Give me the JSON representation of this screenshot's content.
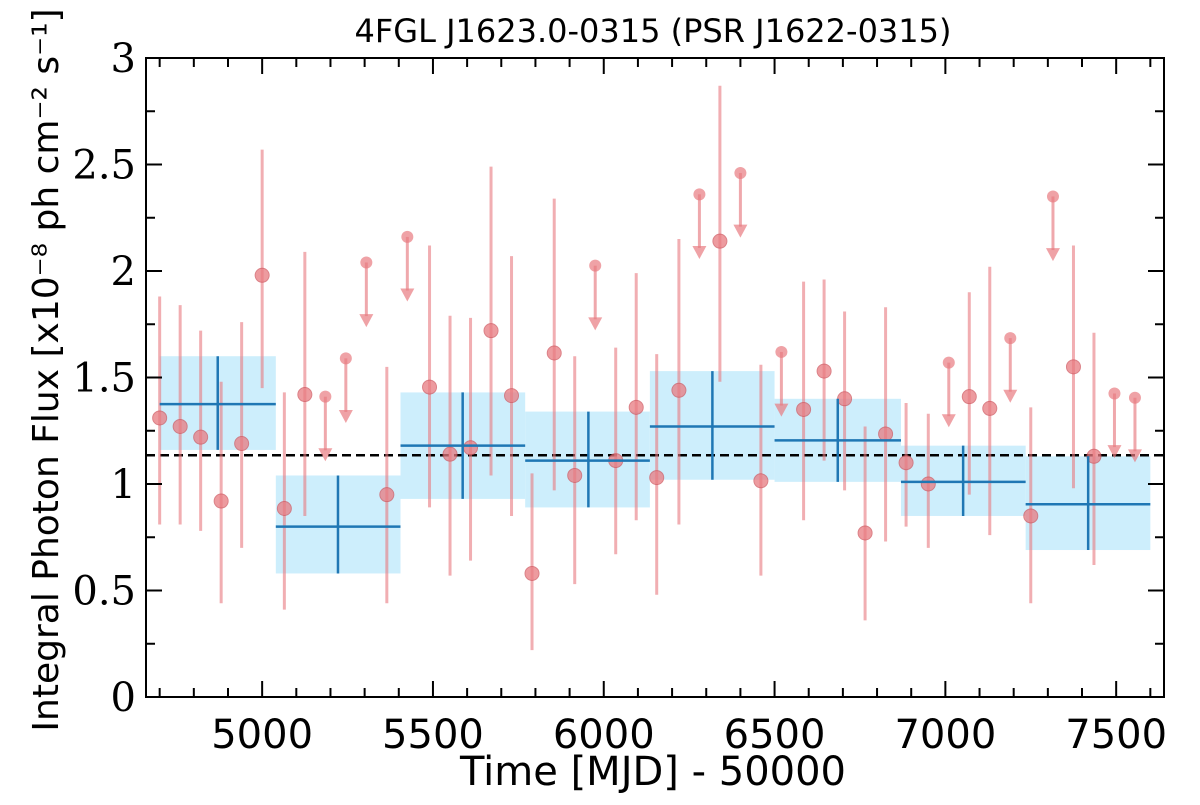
{
  "chart_data": {
    "type": "scatter",
    "title": "4FGL J1623.0-0315 (PSR J1622-0315)",
    "xlabel": "Time [MJD] - 50000",
    "ylabel": "Integral Photon Flux [x10⁻⁸ ph cm⁻² s⁻¹]",
    "xlim": [
      4660,
      7640
    ],
    "ylim": [
      0,
      3
    ],
    "x_ticks": [
      5000,
      5500,
      6000,
      6500,
      7000,
      7500
    ],
    "y_ticks": [
      0,
      0.5,
      1,
      1.5,
      2,
      2.5,
      3
    ],
    "y_tick_labels": [
      "0",
      "0.5",
      "1",
      "1.5",
      "2",
      "2.5",
      "3"
    ],
    "mean_flux": 1.135,
    "colors": {
      "points": "#e87a80",
      "bins": "#1f77b4",
      "bin_band": "#cdeefc",
      "mean_line": "#000000"
    },
    "bins": [
      {
        "x_start": 4700,
        "x_end": 5040,
        "x": 4870,
        "y": 1.375,
        "y_low": 1.16,
        "y_high": 1.6
      },
      {
        "x_start": 5040,
        "x_end": 5405,
        "x": 5222,
        "y": 0.8,
        "y_low": 0.58,
        "y_high": 1.04
      },
      {
        "x_start": 5405,
        "x_end": 5770,
        "x": 5587,
        "y": 1.18,
        "y_low": 0.93,
        "y_high": 1.43
      },
      {
        "x_start": 5770,
        "x_end": 6135,
        "x": 5955,
        "y": 1.11,
        "y_low": 0.89,
        "y_high": 1.34
      },
      {
        "x_start": 6135,
        "x_end": 6500,
        "x": 6318,
        "y": 1.27,
        "y_low": 1.02,
        "y_high": 1.53
      },
      {
        "x_start": 6500,
        "x_end": 6870,
        "x": 6685,
        "y": 1.205,
        "y_low": 1.01,
        "y_high": 1.4
      },
      {
        "x_start": 6870,
        "x_end": 7235,
        "x": 7052,
        "y": 1.01,
        "y_low": 0.85,
        "y_high": 1.18
      },
      {
        "x_start": 7235,
        "x_end": 7600,
        "x": 7418,
        "y": 0.905,
        "y_low": 0.69,
        "y_high": 1.13
      }
    ],
    "points": [
      {
        "x": 4700,
        "y": 1.31,
        "y_low": 0.81,
        "y_high": 1.88
      },
      {
        "x": 4760,
        "y": 1.27,
        "y_low": 0.81,
        "y_high": 1.84
      },
      {
        "x": 4820,
        "y": 1.22,
        "y_low": 0.78,
        "y_high": 1.72
      },
      {
        "x": 4880,
        "y": 0.92,
        "y_low": 0.44,
        "y_high": 1.48
      },
      {
        "x": 4940,
        "y": 1.19,
        "y_low": 0.7,
        "y_high": 1.76
      },
      {
        "x": 5000,
        "y": 1.98,
        "y_low": 1.45,
        "y_high": 2.57
      },
      {
        "x": 5065,
        "y": 0.885,
        "y_low": 0.41,
        "y_high": 1.43
      },
      {
        "x": 5125,
        "y": 1.42,
        "y_low": 0.85,
        "y_high": 2.09
      },
      {
        "x": 5185,
        "y": 1.41,
        "upper_limit": true
      },
      {
        "x": 5245,
        "y": 1.59,
        "upper_limit": true
      },
      {
        "x": 5305,
        "y": 2.04,
        "upper_limit": true
      },
      {
        "x": 5365,
        "y": 0.95,
        "y_low": 0.44,
        "y_high": 1.55
      },
      {
        "x": 5425,
        "y": 2.16,
        "upper_limit": true
      },
      {
        "x": 5490,
        "y": 1.455,
        "y_low": 0.89,
        "y_high": 2.12
      },
      {
        "x": 5550,
        "y": 1.14,
        "y_low": 0.57,
        "y_high": 1.79
      },
      {
        "x": 5610,
        "y": 1.17,
        "y_low": 0.64,
        "y_high": 1.78
      },
      {
        "x": 5670,
        "y": 1.72,
        "y_low": 1.04,
        "y_high": 2.49
      },
      {
        "x": 5730,
        "y": 1.415,
        "y_low": 0.85,
        "y_high": 2.07
      },
      {
        "x": 5790,
        "y": 0.58,
        "y_low": 0.22,
        "y_high": 1.05
      },
      {
        "x": 5855,
        "y": 1.615,
        "y_low": 0.97,
        "y_high": 2.34
      },
      {
        "x": 5915,
        "y": 1.04,
        "y_low": 0.53,
        "y_high": 1.6
      },
      {
        "x": 5975,
        "y": 2.025,
        "upper_limit": true
      },
      {
        "x": 6035,
        "y": 1.11,
        "y_low": 0.67,
        "y_high": 1.64
      },
      {
        "x": 6095,
        "y": 1.36,
        "y_low": 0.83,
        "y_high": 1.99
      },
      {
        "x": 6155,
        "y": 1.03,
        "y_low": 0.48,
        "y_high": 1.61
      },
      {
        "x": 6220,
        "y": 1.44,
        "y_low": 0.81,
        "y_high": 2.15
      },
      {
        "x": 6280,
        "y": 2.36,
        "upper_limit": true
      },
      {
        "x": 6340,
        "y": 2.14,
        "y_low": 1.48,
        "y_high": 2.87
      },
      {
        "x": 6400,
        "y": 2.46,
        "upper_limit": true
      },
      {
        "x": 6460,
        "y": 1.015,
        "y_low": 0.57,
        "y_high": 1.56
      },
      {
        "x": 6520,
        "y": 1.62,
        "upper_limit": true
      },
      {
        "x": 6585,
        "y": 1.35,
        "y_low": 0.83,
        "y_high": 1.95
      },
      {
        "x": 6645,
        "y": 1.53,
        "y_low": 1.11,
        "y_high": 1.96
      },
      {
        "x": 6705,
        "y": 1.4,
        "y_low": 0.97,
        "y_high": 1.81
      },
      {
        "x": 6765,
        "y": 0.77,
        "y_low": 0.36,
        "y_high": 1.27
      },
      {
        "x": 6825,
        "y": 1.235,
        "y_low": 0.73,
        "y_high": 1.83
      },
      {
        "x": 6885,
        "y": 1.1,
        "y_low": 0.8,
        "y_high": 1.38
      },
      {
        "x": 6950,
        "y": 1.0,
        "y_low": 0.7,
        "y_high": 1.33
      },
      {
        "x": 7010,
        "y": 1.57,
        "upper_limit": true
      },
      {
        "x": 7070,
        "y": 1.41,
        "y_low": 0.95,
        "y_high": 1.9
      },
      {
        "x": 7130,
        "y": 1.355,
        "y_low": 0.76,
        "y_high": 2.02
      },
      {
        "x": 7190,
        "y": 1.685,
        "upper_limit": true
      },
      {
        "x": 7250,
        "y": 0.85,
        "y_low": 0.44,
        "y_high": 1.36
      },
      {
        "x": 7315,
        "y": 2.35,
        "upper_limit": true
      },
      {
        "x": 7375,
        "y": 1.55,
        "y_low": 0.98,
        "y_high": 2.12
      },
      {
        "x": 7435,
        "y": 1.13,
        "y_low": 0.62,
        "y_high": 1.71
      },
      {
        "x": 7495,
        "y": 1.425,
        "upper_limit": true
      },
      {
        "x": 7555,
        "y": 1.405,
        "upper_limit": true
      }
    ]
  }
}
